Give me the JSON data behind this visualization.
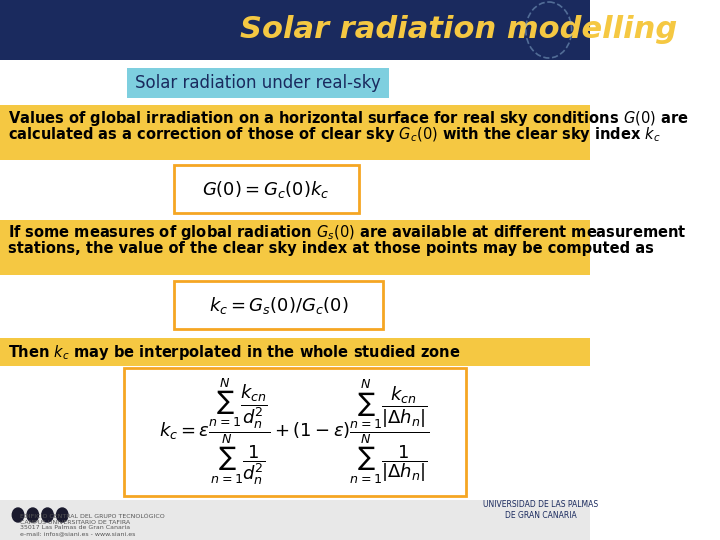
{
  "title": "Solar radiation modelling",
  "title_bg": "#1a2a5e",
  "title_color": "#f5c842",
  "subtitle": "Solar radiation under real-sky",
  "subtitle_bg": "#7ecfdf",
  "subtitle_color": "#1a2a5e",
  "para1": "Values of global irradiation on a horizontal surface for real sky conditions ",
  "para1_italic": "G(0)",
  "para1b": " are\ncalculated as a correction of those of clear sky ",
  "para1_sub1": "G",
  "para1_sub1c": "c",
  "para1_end": "(0) with the clear sky index ",
  "para1_kc": "k",
  "para1_kcc": "c",
  "para1_bg": "#f5c842",
  "formula1": "$G(0) = G_c(0)k_c$",
  "formula1_bg": "#ffffff",
  "formula1_border": "#f5a623",
  "para2": "If some measures of global radiation ",
  "para2_gs": "G",
  "para2_gss": "s",
  "para2_mid": "(0) are available at different measurement\nstations, the value of the clear sky index at those points may be computed as",
  "para2_bg": "#f5c842",
  "formula2": "$k_c = G_s(0)/G_c(0)$",
  "formula2_bg": "#ffffff",
  "formula2_border": "#f5a623",
  "para3": "Then ",
  "para3_kc": "k",
  "para3_kcc": "c",
  "para3_end": " may be interpolated in the whole studied zone",
  "para3_bg": "#f5c842",
  "formula3": "$k_c = \\varepsilon\\dfrac{\\sum_{n=1}^{N}\\dfrac{k_{cn}}{d_n^2}}{\\sum_{n=1}^{N}\\dfrac{1}{d_n^2}} + (1-\\varepsilon)\\dfrac{\\sum_{n=1}^{N}\\dfrac{k_{cn}}{|\\Delta h_n|}}{\\sum_{n=1}^{N}\\dfrac{1}{|\\Delta h_n|}}$",
  "formula3_bg": "#ffffff",
  "formula3_border": "#f5a623",
  "bg_color": "#ffffff",
  "text_color": "#000000",
  "bold_text_color": "#000000"
}
